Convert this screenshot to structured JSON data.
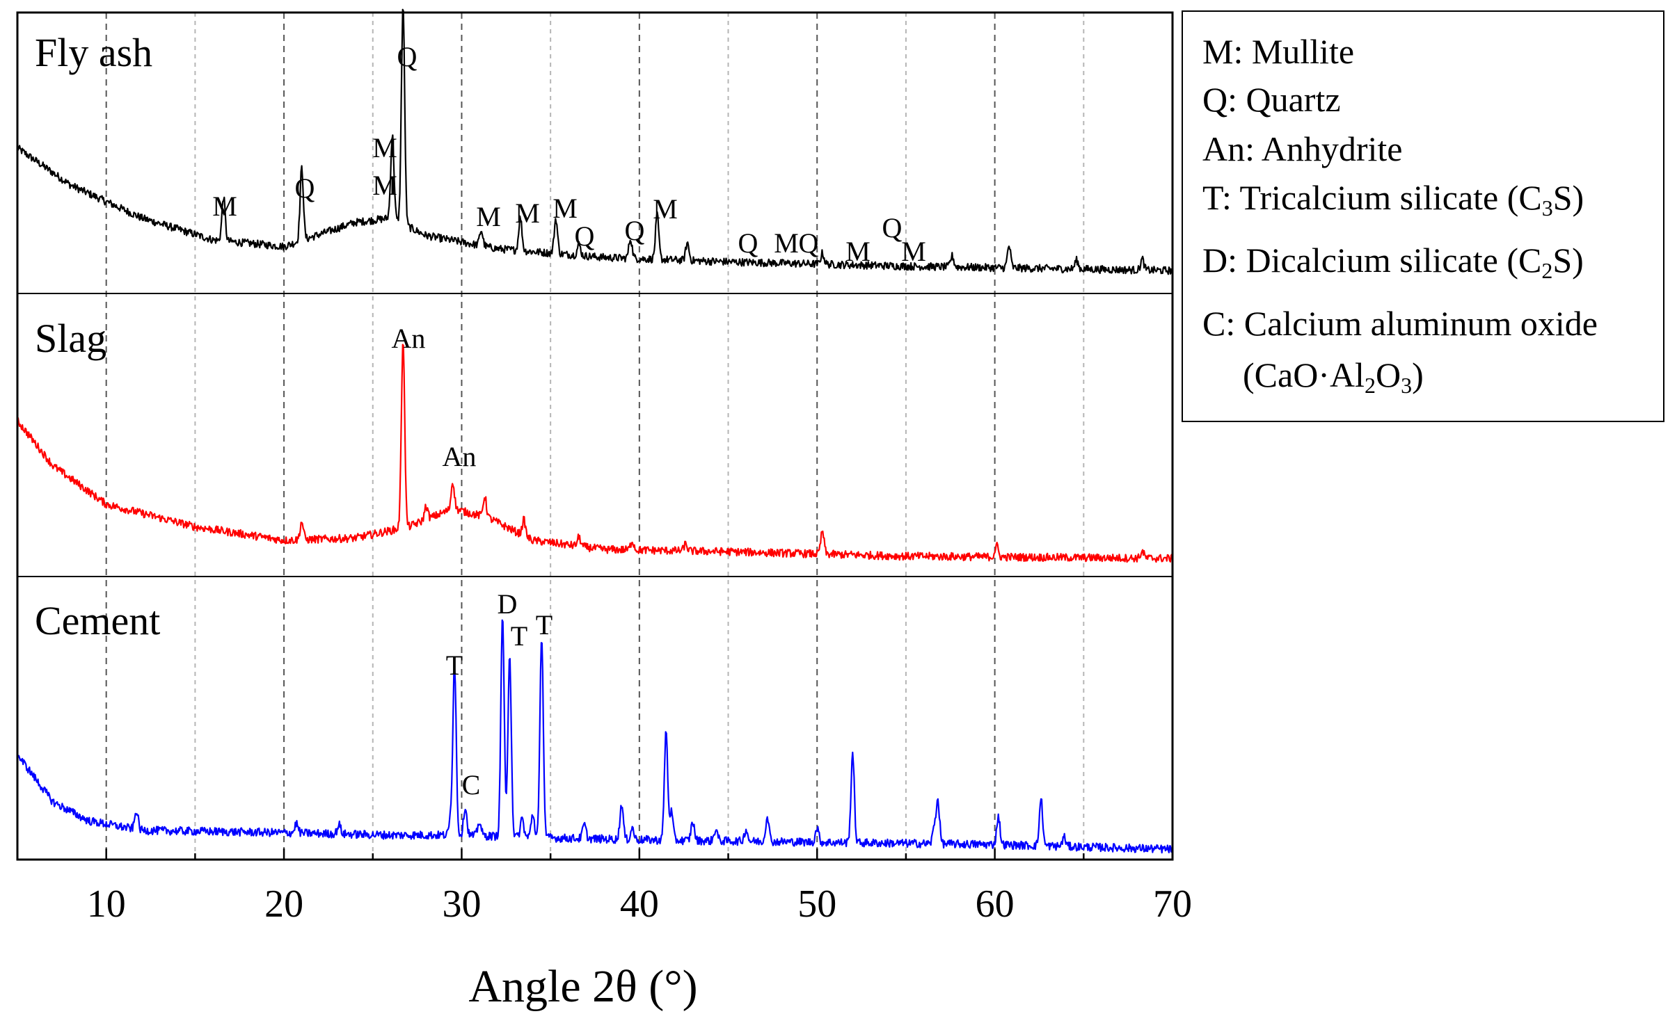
{
  "chart_data": {
    "type": "line",
    "title": "",
    "xlabel": "Angle 2θ (°)",
    "ylabel": "",
    "xlim": [
      5,
      70
    ],
    "xticks": [
      10,
      20,
      30,
      40,
      50,
      60,
      70
    ],
    "x_tick_labels": [
      "10",
      "20",
      "30",
      "40",
      "50",
      "60",
      "70"
    ],
    "grid": "vertical dashed lines every 5°",
    "series": [
      {
        "name": "Fly ash",
        "color": "#000000",
        "baseline": [
          [
            5,
            0.62
          ],
          [
            8,
            0.45
          ],
          [
            12,
            0.3
          ],
          [
            16,
            0.2
          ],
          [
            20,
            0.17
          ],
          [
            24,
            0.28
          ],
          [
            26,
            0.3
          ],
          [
            28,
            0.22
          ],
          [
            32,
            0.16
          ],
          [
            38,
            0.12
          ],
          [
            45,
            0.1
          ],
          [
            55,
            0.08
          ],
          [
            70,
            0.06
          ]
        ],
        "peaks": [
          [
            16.6,
            0.2
          ],
          [
            21.0,
            0.33
          ],
          [
            26.1,
            0.38
          ],
          [
            26.7,
            1.0
          ],
          [
            31.1,
            0.07
          ],
          [
            33.3,
            0.15
          ],
          [
            35.3,
            0.16
          ],
          [
            36.6,
            0.05
          ],
          [
            39.5,
            0.09
          ],
          [
            41.0,
            0.2
          ],
          [
            42.7,
            0.08
          ],
          [
            50.3,
            0.05
          ],
          [
            57.6,
            0.05
          ],
          [
            60.8,
            0.1
          ],
          [
            64.6,
            0.04
          ],
          [
            68.3,
            0.05
          ]
        ],
        "annotations": [
          {
            "label": "M",
            "x": 16.6
          },
          {
            "label": "Q",
            "x": 21.0
          },
          {
            "label": "M",
            "x": 26.1
          },
          {
            "label": "M",
            "x": 26.1
          },
          {
            "label": "Q",
            "x": 26.7
          },
          {
            "label": "M",
            "x": 31.2
          },
          {
            "label": "M",
            "x": 33.3
          },
          {
            "label": "M",
            "x": 35.4
          },
          {
            "label": "Q",
            "x": 36.7
          },
          {
            "label": "Q",
            "x": 39.6
          },
          {
            "label": "M",
            "x": 41.3
          },
          {
            "label": "Q",
            "x": 46.0
          },
          {
            "label": "M",
            "x": 48.4
          },
          {
            "label": "Q",
            "x": 50.0
          },
          {
            "label": "M",
            "x": 52.1
          },
          {
            "label": "Q",
            "x": 54.0
          },
          {
            "label": "M",
            "x": 55.1
          }
        ]
      },
      {
        "name": "Slag",
        "color": "#ff0000",
        "baseline": [
          [
            5,
            0.65
          ],
          [
            7,
            0.45
          ],
          [
            10,
            0.28
          ],
          [
            15,
            0.18
          ],
          [
            20,
            0.12
          ],
          [
            24,
            0.13
          ],
          [
            27,
            0.18
          ],
          [
            29.5,
            0.26
          ],
          [
            31.5,
            0.22
          ],
          [
            34,
            0.12
          ],
          [
            38,
            0.08
          ],
          [
            45,
            0.07
          ],
          [
            55,
            0.05
          ],
          [
            70,
            0.04
          ]
        ],
        "peaks": [
          [
            21.0,
            0.08
          ],
          [
            26.7,
            0.84
          ],
          [
            28.0,
            0.06
          ],
          [
            29.5,
            0.12
          ],
          [
            31.3,
            0.09
          ],
          [
            33.5,
            0.07
          ],
          [
            36.6,
            0.04
          ],
          [
            39.6,
            0.04
          ],
          [
            42.6,
            0.03
          ],
          [
            50.3,
            0.1
          ],
          [
            60.1,
            0.05
          ],
          [
            68.3,
            0.03
          ]
        ],
        "annotations": [
          {
            "label": "An",
            "x": 26.6
          },
          {
            "label": "An",
            "x": 30.0
          }
        ]
      },
      {
        "name": "Cement",
        "color": "#0000ff",
        "baseline": [
          [
            5,
            0.42
          ],
          [
            7,
            0.22
          ],
          [
            9,
            0.14
          ],
          [
            12,
            0.1
          ],
          [
            20,
            0.09
          ],
          [
            26,
            0.08
          ],
          [
            30,
            0.08
          ],
          [
            34,
            0.07
          ],
          [
            40,
            0.06
          ],
          [
            50,
            0.05
          ],
          [
            60,
            0.04
          ],
          [
            70,
            0.02
          ]
        ],
        "peaks": [
          [
            11.7,
            0.08
          ],
          [
            20.7,
            0.04
          ],
          [
            23.1,
            0.04
          ],
          [
            29.4,
            0.08
          ],
          [
            29.6,
            0.72
          ],
          [
            30.2,
            0.12
          ],
          [
            31.0,
            0.06
          ],
          [
            32.3,
            0.94
          ],
          [
            32.7,
            0.78
          ],
          [
            33.4,
            0.08
          ],
          [
            34.0,
            0.1
          ],
          [
            34.5,
            0.86
          ],
          [
            36.9,
            0.06
          ],
          [
            39.0,
            0.15
          ],
          [
            39.6,
            0.05
          ],
          [
            41.5,
            0.46
          ],
          [
            41.8,
            0.12
          ],
          [
            43.0,
            0.08
          ],
          [
            44.3,
            0.05
          ],
          [
            46.0,
            0.05
          ],
          [
            47.2,
            0.11
          ],
          [
            50.0,
            0.06
          ],
          [
            52.0,
            0.38
          ],
          [
            56.6,
            0.07
          ],
          [
            56.8,
            0.18
          ],
          [
            60.2,
            0.12
          ],
          [
            62.6,
            0.2
          ],
          [
            63.9,
            0.04
          ]
        ],
        "annotations": [
          {
            "label": "T",
            "x": 29.6
          },
          {
            "label": "C",
            "x": 30.4
          },
          {
            "label": "D",
            "x": 32.4
          },
          {
            "label": "T",
            "x": 33.1
          },
          {
            "label": "T",
            "x": 34.6
          }
        ]
      }
    ],
    "legend": [
      {
        "text": "M: Mullite"
      },
      {
        "text": "Q: Quartz"
      },
      {
        "text": "An: Anhydrite"
      },
      {
        "text": "T: Tricalcium silicate (C",
        "sub": "3",
        "after": "S)"
      },
      {
        "text": "D: Dicalcium silicate (C",
        "sub": "2",
        "after": "S)"
      },
      {
        "text": "C: Calcium aluminum oxide"
      },
      {
        "text": "(CaO·Al",
        "sub": "2",
        "mid": "O",
        "sub2": "3",
        "after": ")"
      }
    ],
    "legend_position": "right"
  }
}
